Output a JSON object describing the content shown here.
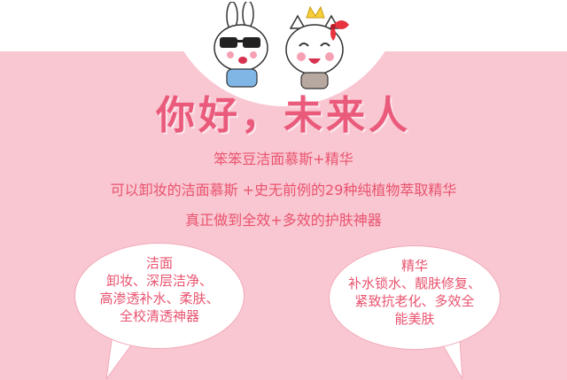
{
  "headline": "你好，未来人",
  "lines": [
    "笨笨豆洁面慕斯+精华",
    "可以卸妆的洁面慕斯 +史无前例的29种纯植物萃取精华",
    "真正做到全效+多效的护肤神器"
  ],
  "bubble_left": {
    "title": "洁面",
    "lines": [
      "卸妆、深层洁净、",
      "高渗透补水、柔肤、",
      "全校清透神器"
    ]
  },
  "bubble_right": {
    "title": "精华",
    "lines": [
      "补水锁水、靓肤修复、",
      "紧致抗老化、多效全",
      "能美肤"
    ]
  },
  "colors": {
    "background": "#f9c7d1",
    "accent": "#e9536f",
    "headline": "#ea5a7b"
  },
  "icons": [
    "bunny-mascot-icon",
    "cat-mascot-icon"
  ]
}
